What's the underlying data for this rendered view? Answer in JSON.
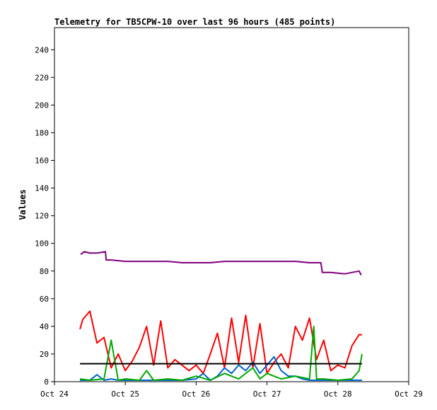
{
  "chart_data": {
    "type": "line",
    "title": "Telemetry for TB5CPW-10 over last 96 hours (485 points)",
    "xlabel": "",
    "ylabel": "Values",
    "x_ticks": [
      "Oct 24",
      "Oct 25",
      "Oct 26",
      "Oct 27",
      "Oct 28",
      "Oct 29"
    ],
    "y_ticks": [
      0,
      20,
      40,
      60,
      80,
      100,
      120,
      140,
      160,
      180,
      200,
      220,
      240
    ],
    "xlim": [
      "Oct 24",
      "Oct 29"
    ],
    "ylim": [
      0,
      256
    ],
    "grid": false,
    "series": [
      {
        "color": "#7f007f",
        "x": [
          0.37,
          0.42,
          0.5,
          0.6,
          0.72,
          0.73,
          0.8,
          1.0,
          1.2,
          1.4,
          1.6,
          1.8,
          2.0,
          2.2,
          2.4,
          2.6,
          2.8,
          3.0,
          3.2,
          3.4,
          3.6,
          3.76,
          3.78,
          3.9,
          4.1,
          4.3,
          4.33
        ],
        "values": [
          92,
          94,
          93,
          93,
          94,
          88,
          88,
          87,
          87,
          87,
          87,
          86,
          86,
          86,
          87,
          87,
          87,
          87,
          87,
          87,
          86,
          86,
          79,
          79,
          78,
          80,
          77
        ]
      },
      {
        "color": "#ff0000",
        "x": [
          0.36,
          0.4,
          0.5,
          0.6,
          0.7,
          0.8,
          0.9,
          1.0,
          1.1,
          1.2,
          1.3,
          1.4,
          1.5,
          1.6,
          1.7,
          1.8,
          1.9,
          2.0,
          2.1,
          2.2,
          2.3,
          2.4,
          2.5,
          2.6,
          2.7,
          2.8,
          2.9,
          3.0,
          3.1,
          3.2,
          3.3,
          3.4,
          3.5,
          3.6,
          3.7,
          3.8,
          3.9,
          4.0,
          4.1,
          4.2,
          4.3,
          4.34
        ],
        "values": [
          38,
          45,
          51,
          28,
          32,
          10,
          20,
          8,
          15,
          25,
          40,
          12,
          44,
          10,
          16,
          12,
          8,
          12,
          6,
          20,
          35,
          10,
          46,
          14,
          48,
          10,
          42,
          6,
          14,
          20,
          10,
          40,
          30,
          46,
          16,
          30,
          8,
          12,
          10,
          26,
          34,
          34
        ]
      },
      {
        "color": "#0066cc",
        "x": [
          0.36,
          0.5,
          0.6,
          0.7,
          0.8,
          0.9,
          1.0,
          1.2,
          1.4,
          1.6,
          1.8,
          2.0,
          2.1,
          2.2,
          2.3,
          2.4,
          2.5,
          2.6,
          2.7,
          2.8,
          2.9,
          3.0,
          3.1,
          3.2,
          3.3,
          3.4,
          3.5,
          3.6,
          3.7,
          3.8,
          3.9,
          4.0,
          4.2,
          4.34
        ],
        "values": [
          1,
          1,
          5,
          1,
          2,
          1,
          1,
          1,
          1,
          1,
          1,
          2,
          6,
          1,
          4,
          10,
          6,
          12,
          8,
          14,
          6,
          12,
          18,
          8,
          4,
          4,
          2,
          1,
          1,
          1,
          1,
          1,
          1,
          1
        ]
      },
      {
        "color": "#00aa00",
        "x": [
          0.36,
          0.5,
          0.7,
          0.8,
          0.9,
          1.0,
          1.2,
          1.3,
          1.4,
          1.6,
          1.8,
          2.0,
          2.2,
          2.4,
          2.6,
          2.8,
          2.9,
          3.0,
          3.2,
          3.4,
          3.6,
          3.66,
          3.7,
          3.8,
          4.0,
          4.2,
          4.3,
          4.34
        ],
        "values": [
          2,
          1,
          2,
          30,
          1,
          2,
          1,
          8,
          1,
          2,
          1,
          4,
          1,
          6,
          2,
          10,
          2,
          6,
          2,
          4,
          2,
          40,
          2,
          2,
          1,
          2,
          8,
          20
        ]
      },
      {
        "color": "#000000",
        "x": [
          0.36,
          4.34
        ],
        "values": [
          13,
          13
        ]
      }
    ]
  }
}
